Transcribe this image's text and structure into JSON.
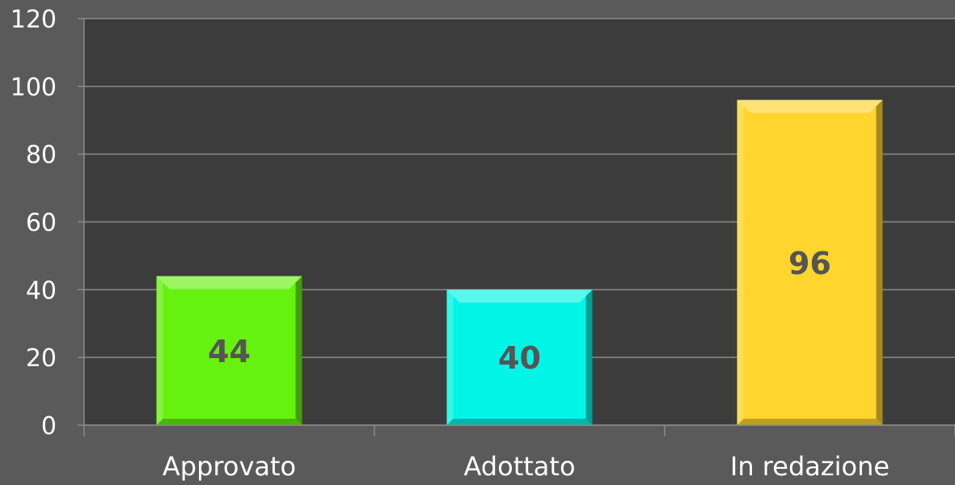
{
  "chart_data": {
    "type": "bar",
    "title": "",
    "xlabel": "",
    "ylabel": "",
    "categories": [
      "Approvato",
      "Adottato",
      "In redazione"
    ],
    "values": [
      44,
      40,
      96
    ],
    "data_labels": [
      "44",
      "40",
      "96"
    ],
    "colors": [
      "#66f20f",
      "#00f5e6",
      "#ffd52e"
    ],
    "ylim": [
      0,
      120
    ],
    "yticks": [
      0,
      20,
      40,
      60,
      80,
      100,
      120
    ],
    "ytick_labels": [
      "0",
      "20",
      "40",
      "60",
      "80",
      "100",
      "120"
    ],
    "grid": true,
    "legend": "none"
  }
}
